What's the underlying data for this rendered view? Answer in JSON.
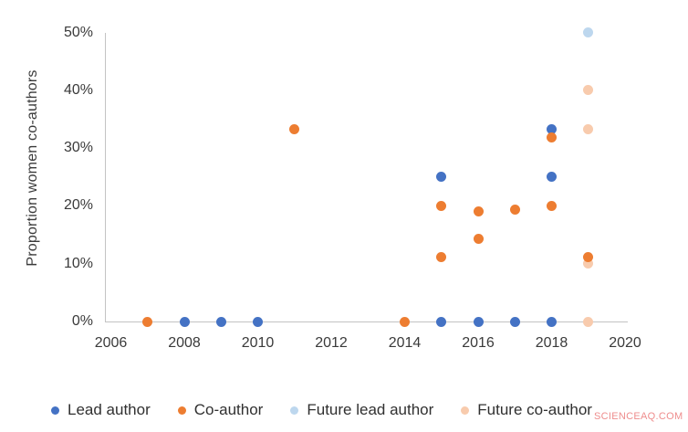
{
  "watermark": "SCIENCEAQ.COM",
  "colors": {
    "axis": "#c3c3c3",
    "text": "#3a3a3a",
    "watermark": "#eb7878"
  },
  "chart_data": {
    "type": "scatter",
    "title": "",
    "xlabel": "",
    "ylabel": "Proportion women co-authors",
    "xlim": [
      2006,
      2020
    ],
    "ylim": [
      0,
      50
    ],
    "grid": false,
    "legend_position": "bottom",
    "x_ticks": [
      2006,
      2008,
      2010,
      2012,
      2014,
      2016,
      2018,
      2020
    ],
    "y_ticks": [
      0,
      10,
      20,
      30,
      40,
      50
    ],
    "y_tick_suffix": "%",
    "series": [
      {
        "name": "Lead author",
        "color": "#4472C4",
        "points": [
          [
            2008,
            0
          ],
          [
            2009,
            0
          ],
          [
            2010,
            0
          ],
          [
            2015,
            0
          ],
          [
            2015,
            25
          ],
          [
            2016,
            0
          ],
          [
            2017,
            0
          ],
          [
            2018,
            0
          ],
          [
            2018,
            25
          ],
          [
            2018,
            33.3
          ]
        ]
      },
      {
        "name": "Co-author",
        "color": "#ED7D31",
        "points": [
          [
            2007,
            0
          ],
          [
            2011,
            33.3
          ],
          [
            2014,
            0
          ],
          [
            2015,
            11.1
          ],
          [
            2015,
            20
          ],
          [
            2016,
            14.3
          ],
          [
            2016,
            19
          ],
          [
            2017,
            19.4
          ],
          [
            2018,
            20
          ],
          [
            2018,
            31.8
          ],
          [
            2019,
            11.1
          ]
        ]
      },
      {
        "name": "Future lead author",
        "color": "#BDD7EE",
        "points": [
          [
            2019,
            50
          ]
        ]
      },
      {
        "name": "Future co-author",
        "color": "#F8CBAD",
        "points": [
          [
            2019,
            0
          ],
          [
            2019,
            10
          ],
          [
            2019,
            33.3
          ],
          [
            2019,
            40
          ]
        ]
      }
    ]
  }
}
